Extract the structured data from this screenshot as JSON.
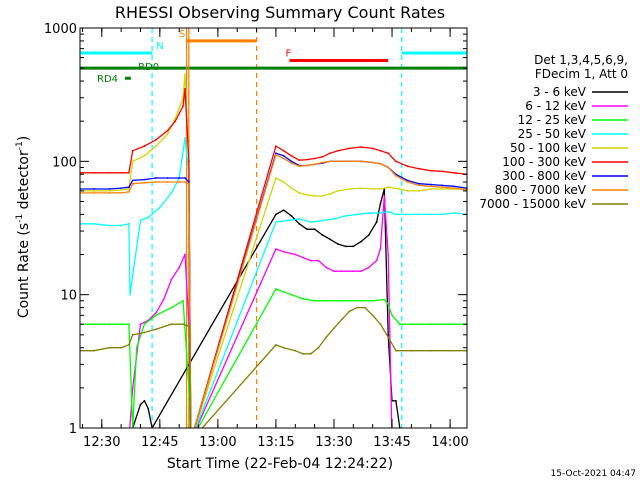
{
  "chart_data": {
    "type": "line",
    "title": "RHESSI Observing Summary Count Rates",
    "xlabel": "Start Time (22-Feb-04 12:24:22)",
    "ylabel_parts": [
      "Count Rate (s",
      "-1",
      " detector",
      "-1",
      ")"
    ],
    "scale_y": "log",
    "ylim": [
      1,
      1000
    ],
    "xlim_minutes": [
      24.37,
      124.37
    ],
    "x_ticks": [
      {
        "label": "12:30",
        "minute": 30
      },
      {
        "label": "12:45",
        "minute": 45
      },
      {
        "label": "13:00",
        "minute": 60
      },
      {
        "label": "13:15",
        "minute": 75
      },
      {
        "label": "13:30",
        "minute": 90
      },
      {
        "label": "13:45",
        "minute": 105
      },
      {
        "label": "14:00",
        "minute": 120
      }
    ],
    "y_ticks": [
      {
        "label": "1",
        "value": 1
      },
      {
        "label": "10",
        "value": 10
      },
      {
        "label": "100",
        "value": 100
      },
      {
        "label": "1000",
        "value": 1000
      }
    ],
    "legend_header": [
      "Det 1,3,4,5,6,9,",
      "FDecim 1, Att 0"
    ],
    "legend_position": "right",
    "flags": [
      {
        "label": "N",
        "color": "#00ffff",
        "segments": [
          [
            24.4,
            43.0
          ],
          [
            107.5,
            124.3
          ]
        ],
        "level": 650,
        "dashed_bounds": [
          43.0,
          107.5
        ]
      },
      {
        "label": "S",
        "color": "#ff8000",
        "segments": [
          [
            52.0,
            70.0
          ]
        ],
        "level": 800,
        "dashed_bounds": [
          52.5,
          70.0
        ]
      },
      {
        "label": "F",
        "color": "#ff0000",
        "segments": [
          [
            78.5,
            104.0
          ]
        ],
        "level": 570
      },
      {
        "label": "RD0",
        "color": "#008000",
        "segments": [
          [
            24.4,
            124.3
          ]
        ],
        "level": 500
      },
      {
        "label": "RD4",
        "color": "#008000",
        "segments": [
          [
            36.0,
            37.5
          ]
        ],
        "level": 420
      }
    ],
    "series": [
      {
        "name": "3 - 6 keV",
        "color": "#000000",
        "points": [
          [
            38,
            1.0
          ],
          [
            40,
            1.5
          ],
          [
            41,
            1.6
          ],
          [
            42,
            1.4
          ],
          [
            43,
            1.0
          ],
          [
            75,
            40
          ],
          [
            77,
            43
          ],
          [
            79,
            39
          ],
          [
            81,
            34
          ],
          [
            83,
            31
          ],
          [
            85,
            31
          ],
          [
            87,
            28
          ],
          [
            89,
            26
          ],
          [
            91,
            24
          ],
          [
            93,
            23
          ],
          [
            95,
            23
          ],
          [
            97,
            25
          ],
          [
            99,
            28
          ],
          [
            101,
            35
          ],
          [
            102,
            48
          ],
          [
            103,
            62
          ],
          [
            104,
            5
          ],
          [
            105,
            1.6
          ],
          [
            106,
            1.6
          ],
          [
            107,
            1.0
          ]
        ]
      },
      {
        "name": "6 - 12 keV",
        "color": "#ff00ff",
        "points": [
          [
            24.4,
            0.8
          ],
          [
            30,
            0.8
          ],
          [
            37,
            0.8
          ],
          [
            38,
            2
          ],
          [
            40,
            6
          ],
          [
            42,
            6.4
          ],
          [
            44,
            7.3
          ],
          [
            46,
            9.2
          ],
          [
            48,
            13
          ],
          [
            50,
            16
          ],
          [
            51.5,
            20
          ],
          [
            52.5,
            6
          ],
          [
            53,
            0.8
          ],
          [
            75,
            22
          ],
          [
            77,
            21
          ],
          [
            80,
            20
          ],
          [
            84,
            18
          ],
          [
            86,
            18
          ],
          [
            88,
            16
          ],
          [
            90,
            15
          ],
          [
            92,
            15
          ],
          [
            95,
            15
          ],
          [
            97,
            15
          ],
          [
            99,
            16
          ],
          [
            101,
            18
          ],
          [
            102,
            22
          ],
          [
            103,
            55
          ],
          [
            104,
            20
          ],
          [
            105,
            0.8
          ],
          [
            124.3,
            0.8
          ]
        ]
      },
      {
        "name": "12 - 25 keV",
        "color": "#00ff00",
        "points": [
          [
            24.4,
            6
          ],
          [
            28,
            6
          ],
          [
            32,
            6
          ],
          [
            35,
            6
          ],
          [
            37,
            6
          ],
          [
            38,
            1.0
          ],
          [
            39,
            4
          ],
          [
            41,
            6
          ],
          [
            44,
            7
          ],
          [
            48,
            8
          ],
          [
            51,
            9
          ],
          [
            52.5,
            2
          ],
          [
            53,
            0.8
          ],
          [
            75,
            11
          ],
          [
            77,
            10.5
          ],
          [
            79,
            10
          ],
          [
            82,
            9.3
          ],
          [
            85,
            9
          ],
          [
            88,
            9
          ],
          [
            91,
            9
          ],
          [
            94,
            9
          ],
          [
            97,
            9
          ],
          [
            100,
            9
          ],
          [
            103,
            9.2
          ],
          [
            104,
            8.5
          ],
          [
            105,
            7
          ],
          [
            107,
            6
          ],
          [
            110,
            6
          ],
          [
            115,
            6
          ],
          [
            120,
            6
          ],
          [
            124.3,
            6
          ]
        ]
      },
      {
        "name": "25 - 50 keV",
        "color": "#00ffff",
        "points": [
          [
            24.4,
            34
          ],
          [
            28,
            34
          ],
          [
            32,
            33
          ],
          [
            35,
            33
          ],
          [
            37,
            34
          ],
          [
            37.3,
            10
          ],
          [
            38,
            14
          ],
          [
            40,
            36
          ],
          [
            42,
            38
          ],
          [
            45,
            45
          ],
          [
            48,
            58
          ],
          [
            50,
            75
          ],
          [
            51.5,
            150
          ],
          [
            52.5,
            80
          ],
          [
            53,
            0.8
          ],
          [
            75,
            35
          ],
          [
            78,
            36
          ],
          [
            81,
            37
          ],
          [
            84,
            35
          ],
          [
            87,
            36
          ],
          [
            90,
            37
          ],
          [
            93,
            39
          ],
          [
            96,
            40
          ],
          [
            99,
            41
          ],
          [
            102,
            41
          ],
          [
            104,
            42
          ],
          [
            106,
            40
          ],
          [
            109,
            40
          ],
          [
            112,
            40
          ],
          [
            115,
            40
          ],
          [
            118,
            40
          ],
          [
            121,
            41
          ],
          [
            124.3,
            40
          ]
        ]
      },
      {
        "name": "50 - 100 keV",
        "color": "#d4d400",
        "points": [
          [
            24.4,
            60
          ],
          [
            28,
            60
          ],
          [
            32,
            60
          ],
          [
            35,
            61
          ],
          [
            37,
            62
          ],
          [
            38,
            100
          ],
          [
            41,
            110
          ],
          [
            44,
            130
          ],
          [
            47,
            160
          ],
          [
            49,
            210
          ],
          [
            51,
            300
          ],
          [
            51.5,
            450
          ],
          [
            52.5,
            100
          ],
          [
            53,
            0.8
          ],
          [
            75,
            75
          ],
          [
            77,
            70
          ],
          [
            79,
            63
          ],
          [
            81,
            58
          ],
          [
            83,
            56
          ],
          [
            85,
            55
          ],
          [
            87,
            55
          ],
          [
            89,
            57
          ],
          [
            91,
            60
          ],
          [
            94,
            62
          ],
          [
            97,
            63
          ],
          [
            100,
            62
          ],
          [
            102,
            62
          ],
          [
            104,
            64
          ],
          [
            107,
            62
          ],
          [
            109,
            60
          ],
          [
            112,
            60
          ],
          [
            115,
            62
          ],
          [
            118,
            62
          ],
          [
            121,
            62
          ],
          [
            124.3,
            62
          ]
        ]
      },
      {
        "name": "100 - 300 keV",
        "color": "#ff0000",
        "points": [
          [
            24.4,
            82
          ],
          [
            28,
            82
          ],
          [
            32,
            82
          ],
          [
            35,
            82
          ],
          [
            37,
            82
          ],
          [
            38,
            120
          ],
          [
            41,
            130
          ],
          [
            44,
            145
          ],
          [
            47,
            170
          ],
          [
            49,
            200
          ],
          [
            51,
            260
          ],
          [
            51.5,
            350
          ],
          [
            52.5,
            100
          ],
          [
            53,
            0.8
          ],
          [
            75,
            130
          ],
          [
            77,
            120
          ],
          [
            79,
            110
          ],
          [
            81,
            102
          ],
          [
            83,
            103
          ],
          [
            85,
            105
          ],
          [
            87,
            108
          ],
          [
            89,
            115
          ],
          [
            91,
            120
          ],
          [
            94,
            125
          ],
          [
            97,
            128
          ],
          [
            100,
            125
          ],
          [
            102,
            120
          ],
          [
            104,
            115
          ],
          [
            106,
            100
          ],
          [
            109,
            92
          ],
          [
            112,
            88
          ],
          [
            115,
            85
          ],
          [
            118,
            84
          ],
          [
            121,
            82
          ],
          [
            124.3,
            80
          ]
        ]
      },
      {
        "name": "300 - 800 keV",
        "color": "#0000ff",
        "points": [
          [
            24.4,
            62
          ],
          [
            28,
            62
          ],
          [
            32,
            62
          ],
          [
            35,
            63
          ],
          [
            37,
            64
          ],
          [
            38,
            72
          ],
          [
            41,
            73
          ],
          [
            44,
            75
          ],
          [
            47,
            75
          ],
          [
            50,
            75
          ],
          [
            51.5,
            75
          ],
          [
            52.5,
            70
          ],
          [
            53,
            0.8
          ],
          [
            75,
            115
          ],
          [
            77,
            110
          ],
          [
            79,
            100
          ],
          [
            81,
            93
          ],
          [
            83,
            93
          ],
          [
            85,
            95
          ],
          [
            87,
            97
          ],
          [
            89,
            100
          ],
          [
            91,
            100
          ],
          [
            94,
            100
          ],
          [
            97,
            100
          ],
          [
            100,
            98
          ],
          [
            102,
            96
          ],
          [
            104,
            90
          ],
          [
            106,
            80
          ],
          [
            109,
            72
          ],
          [
            112,
            68
          ],
          [
            115,
            67
          ],
          [
            118,
            66
          ],
          [
            121,
            65
          ],
          [
            124.3,
            63
          ]
        ]
      },
      {
        "name": "800 - 7000 keV",
        "color": "#ff8000",
        "points": [
          [
            24.4,
            58
          ],
          [
            28,
            58
          ],
          [
            32,
            58
          ],
          [
            35,
            58
          ],
          [
            37,
            59
          ],
          [
            38,
            68
          ],
          [
            41,
            69
          ],
          [
            44,
            70
          ],
          [
            47,
            70
          ],
          [
            50,
            70
          ],
          [
            51.5,
            70
          ],
          [
            52.5,
            68
          ],
          [
            53,
            0.8
          ],
          [
            75,
            112
          ],
          [
            77,
            105
          ],
          [
            79,
            97
          ],
          [
            81,
            92
          ],
          [
            83,
            93
          ],
          [
            85,
            95
          ],
          [
            87,
            98
          ],
          [
            89,
            100
          ],
          [
            91,
            100
          ],
          [
            94,
            100
          ],
          [
            97,
            100
          ],
          [
            100,
            98
          ],
          [
            102,
            96
          ],
          [
            104,
            90
          ],
          [
            106,
            78
          ],
          [
            109,
            70
          ],
          [
            112,
            66
          ],
          [
            115,
            65
          ],
          [
            118,
            64
          ],
          [
            121,
            63
          ],
          [
            124.3,
            61
          ]
        ]
      },
      {
        "name": "7000 - 15000 keV",
        "color": "#808000",
        "points": [
          [
            24.4,
            3.8
          ],
          [
            28,
            3.8
          ],
          [
            32,
            4
          ],
          [
            35,
            4
          ],
          [
            37,
            4.2
          ],
          [
            38,
            5
          ],
          [
            41,
            5.2
          ],
          [
            44,
            5.5
          ],
          [
            48,
            6
          ],
          [
            51,
            6
          ],
          [
            52.5,
            5.8
          ],
          [
            53,
            0.8
          ],
          [
            75,
            4.2
          ],
          [
            77,
            4.0
          ],
          [
            80,
            3.8
          ],
          [
            82,
            3.6
          ],
          [
            84,
            3.6
          ],
          [
            86,
            4.0
          ],
          [
            88,
            4.8
          ],
          [
            90,
            5.6
          ],
          [
            92,
            6.5
          ],
          [
            94,
            7.5
          ],
          [
            96,
            8
          ],
          [
            98,
            8
          ],
          [
            100,
            7
          ],
          [
            102,
            6
          ],
          [
            104,
            4.8
          ],
          [
            106,
            3.8
          ],
          [
            110,
            3.8
          ],
          [
            115,
            3.8
          ],
          [
            120,
            3.8
          ],
          [
            124.3,
            3.8
          ]
        ]
      }
    ]
  },
  "timestamp": "15-Oct-2021 04:47"
}
